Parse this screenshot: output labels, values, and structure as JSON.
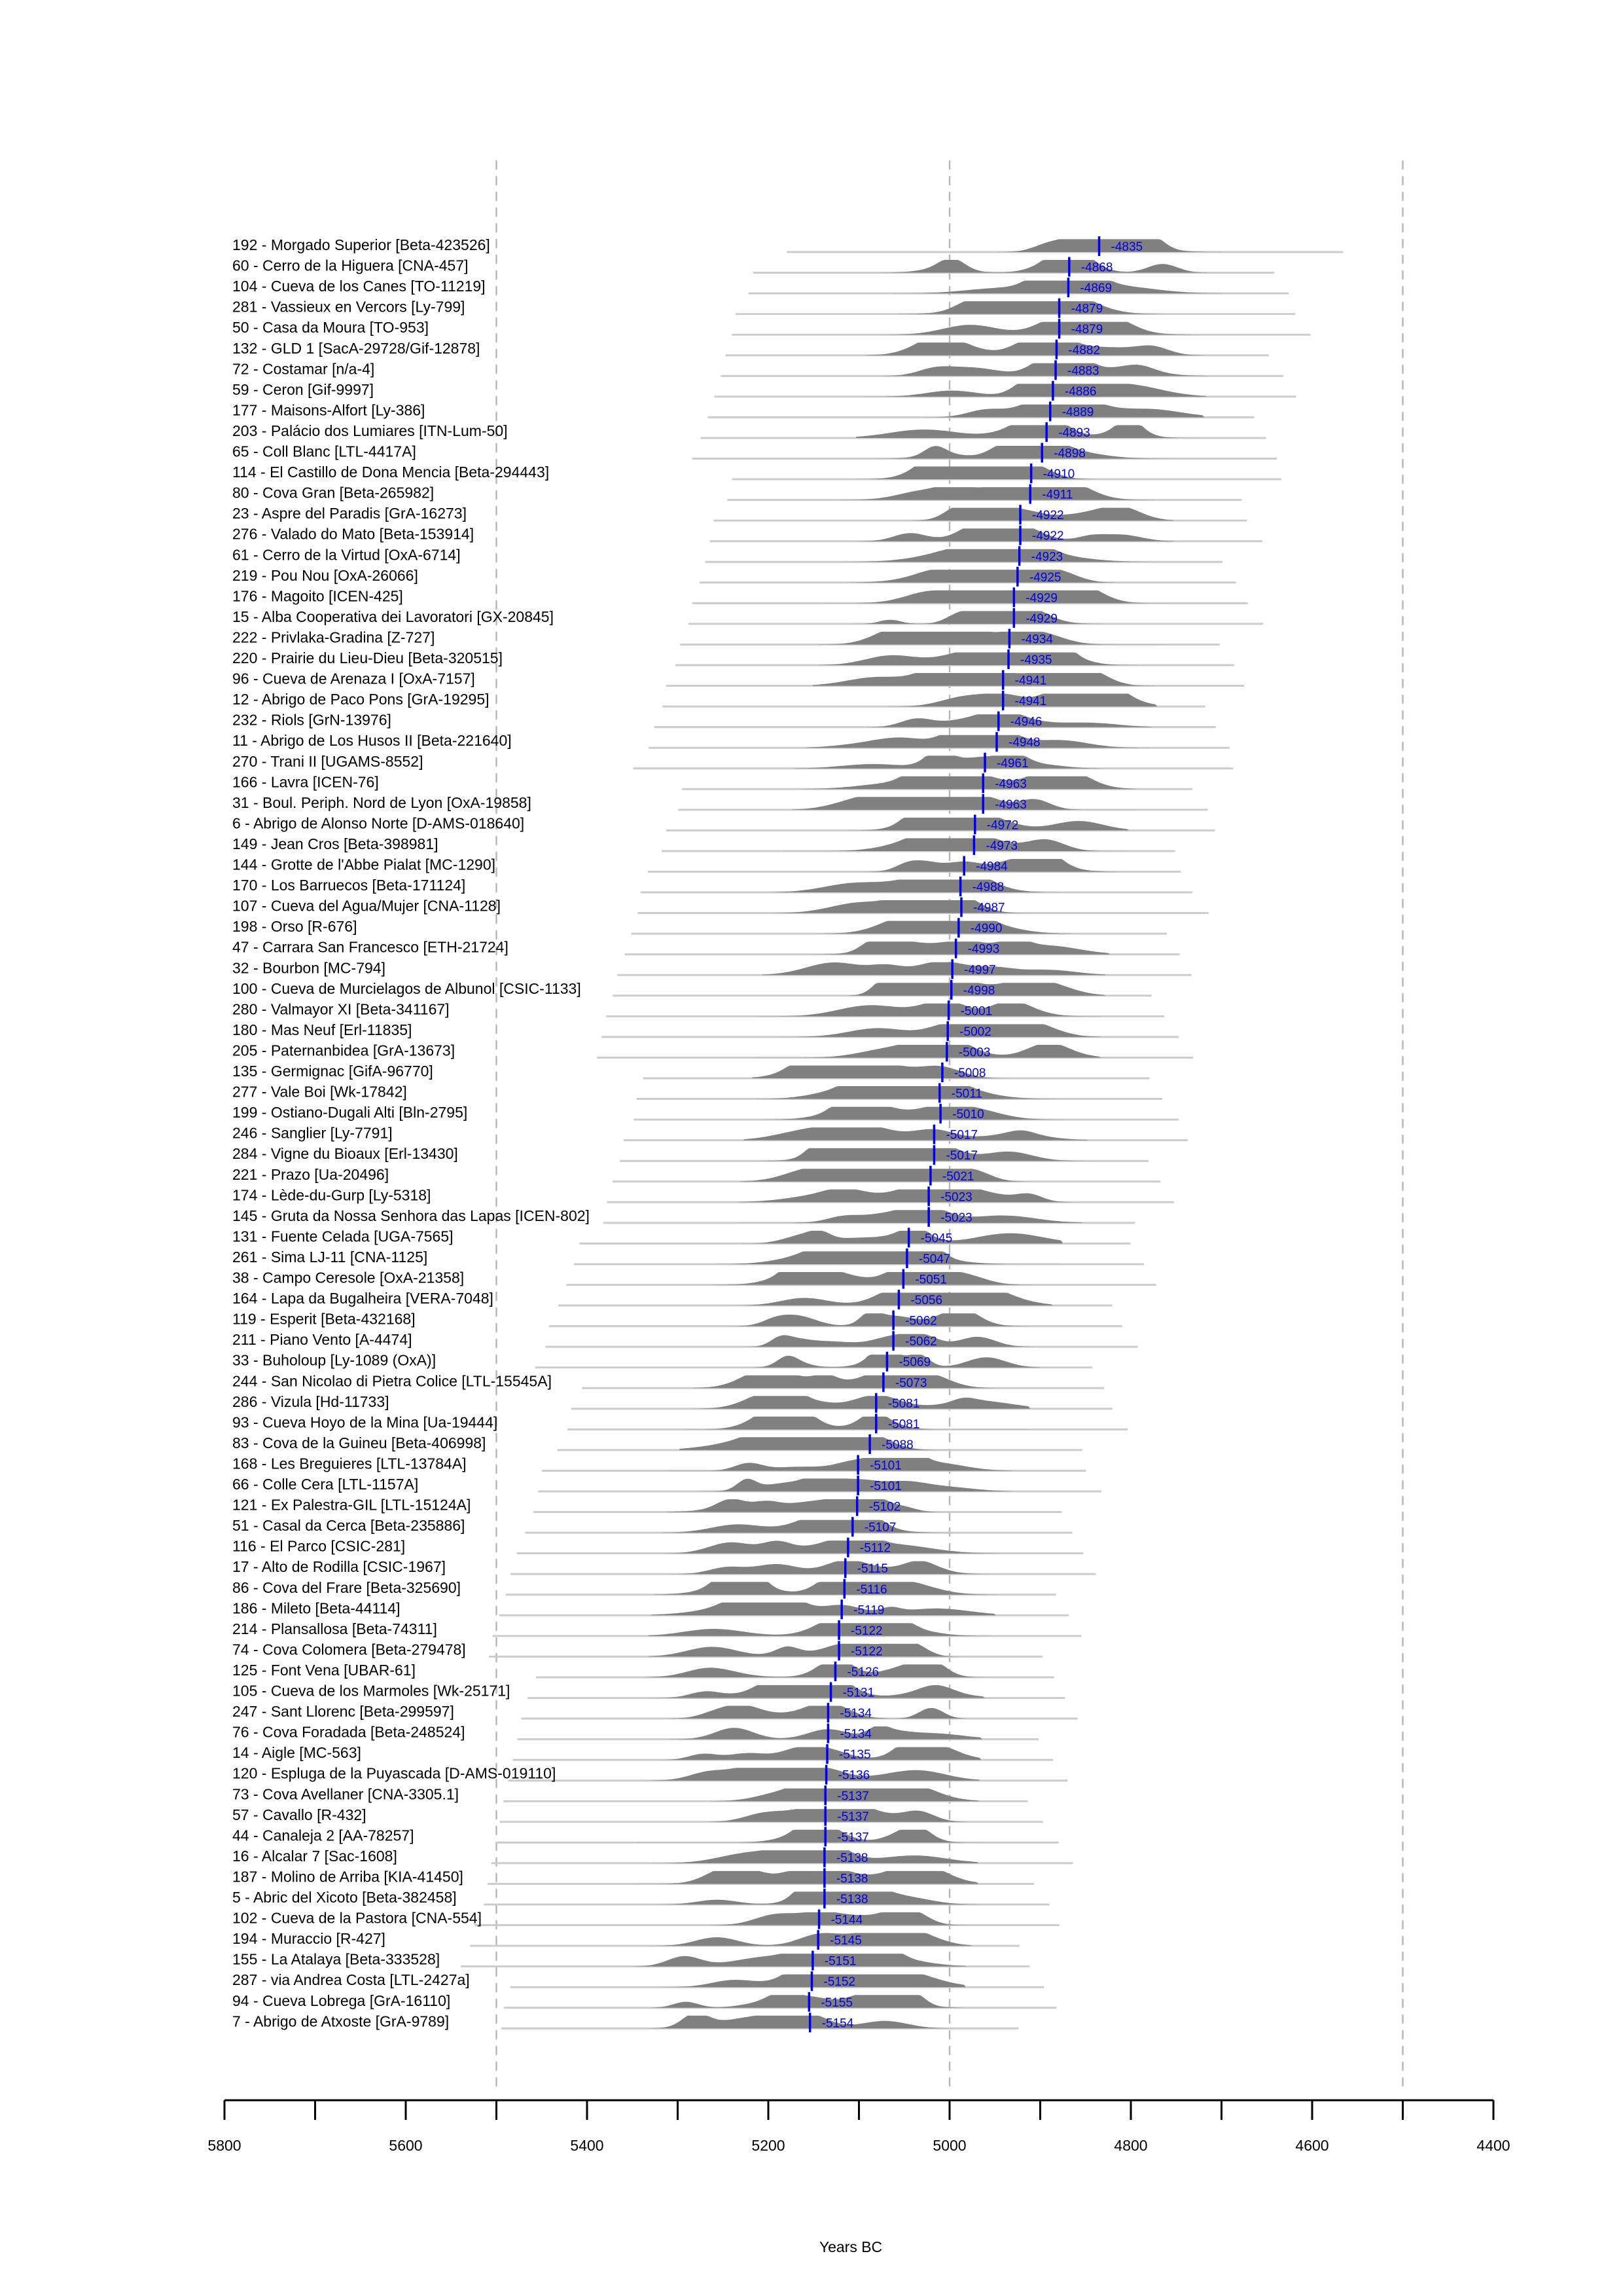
{
  "chart_data": {
    "type": "density-ridge",
    "xlabel": "Years BC",
    "xlim": [
      5800,
      4400
    ],
    "ticks_labeled": [
      5800,
      5600,
      5400,
      5200,
      5000,
      4800,
      4600,
      4400
    ],
    "ticks_minor": [
      5700,
      5500,
      5300,
      5100,
      4900,
      4700,
      4500
    ],
    "reference_lines": [
      5500,
      5000,
      4500
    ],
    "colors": {
      "density": "#808080",
      "range": "#cccccc",
      "median": "#0000ee"
    },
    "rows": [
      {
        "label": "192 - Morgado Superior [Beta-423526]",
        "median": -4835
      },
      {
        "label": "60 - Cerro de la Higuera [CNA-457]",
        "median": -4868
      },
      {
        "label": "104 - Cueva de los Canes [TO-11219]",
        "median": -4869
      },
      {
        "label": "281 - Vassieux en Vercors [Ly-799]",
        "median": -4879
      },
      {
        "label": "50 - Casa da Moura [TO-953]",
        "median": -4879
      },
      {
        "label": "132 - GLD 1 [SacA-29728/Gif-12878]",
        "median": -4882
      },
      {
        "label": "72 - Costamar [n/a-4]",
        "median": -4883
      },
      {
        "label": "59 - Ceron [Gif-9997]",
        "median": -4886
      },
      {
        "label": "177 - Maisons-Alfort [Ly-386]",
        "median": -4889
      },
      {
        "label": "203 - Palácio dos Lumiares [ITN-Lum-50]",
        "median": -4893
      },
      {
        "label": "65 - Coll Blanc [LTL-4417A]",
        "median": -4898
      },
      {
        "label": "114 - El Castillo de Dona Mencia [Beta-294443]",
        "median": -4910
      },
      {
        "label": "80 - Cova Gran [Beta-265982]",
        "median": -4911
      },
      {
        "label": "23 - Aspre del Paradis [GrA-16273]",
        "median": -4922
      },
      {
        "label": "276 - Valado do Mato [Beta-153914]",
        "median": -4922
      },
      {
        "label": "61 - Cerro de la Virtud [OxA-6714]",
        "median": -4923
      },
      {
        "label": "219 - Pou Nou [OxA-26066]",
        "median": -4925
      },
      {
        "label": "176 - Magoito [ICEN-425]",
        "median": -4929
      },
      {
        "label": "15 - Alba Cooperativa dei Lavoratori [GX-20845]",
        "median": -4929
      },
      {
        "label": "222 - Privlaka-Gradina [Z-727]",
        "median": -4934
      },
      {
        "label": "220 - Prairie du Lieu-Dieu [Beta-320515]",
        "median": -4935
      },
      {
        "label": "96 - Cueva de Arenaza I [OxA-7157]",
        "median": -4941
      },
      {
        "label": "12 - Abrigo de Paco Pons [GrA-19295]",
        "median": -4941
      },
      {
        "label": "232 - Riols [GrN-13976]",
        "median": -4946
      },
      {
        "label": "11 - Abrigo de Los Husos II [Beta-221640]",
        "median": -4948
      },
      {
        "label": "270 - Trani II [UGAMS-8552]",
        "median": -4961
      },
      {
        "label": "166 - Lavra [ICEN-76]",
        "median": -4963
      },
      {
        "label": "31 - Boul. Periph. Nord de Lyon [OxA-19858]",
        "median": -4963
      },
      {
        "label": "6 - Abrigo de Alonso Norte [D-AMS-018640]",
        "median": -4972
      },
      {
        "label": "149 - Jean Cros [Beta-398981]",
        "median": -4973
      },
      {
        "label": "144 - Grotte de l'Abbe Pialat [MC-1290]",
        "median": -4984
      },
      {
        "label": "170 - Los Barruecos [Beta-171124]",
        "median": -4988
      },
      {
        "label": "107 - Cueva del Agua/Mujer [CNA-1128]",
        "median": -4987
      },
      {
        "label": "198 - Orso [R-676]",
        "median": -4990
      },
      {
        "label": "47 - Carrara San Francesco [ETH-21724]",
        "median": -4993
      },
      {
        "label": "32 - Bourbon [MC-794]",
        "median": -4997
      },
      {
        "label": "100 - Cueva de Murcielagos de Albunol [CSIC-1133]",
        "median": -4998
      },
      {
        "label": "280 - Valmayor XI [Beta-341167]",
        "median": -5001
      },
      {
        "label": "180 - Mas Neuf [Erl-11835]",
        "median": -5002
      },
      {
        "label": "205 - Paternanbidea [GrA-13673]",
        "median": -5003
      },
      {
        "label": "135 - Germignac [GifA-96770]",
        "median": -5008
      },
      {
        "label": "277 - Vale Boi [Wk-17842]",
        "median": -5011
      },
      {
        "label": "199 - Ostiano-Dugali Alti [Bln-2795]",
        "median": -5010
      },
      {
        "label": "246 - Sanglier [Ly-7791]",
        "median": -5017
      },
      {
        "label": "284 - Vigne du Bioaux [Erl-13430]",
        "median": -5017
      },
      {
        "label": "221 - Prazo [Ua-20496]",
        "median": -5021
      },
      {
        "label": "174 - Lède-du-Gurp [Ly-5318]",
        "median": -5023
      },
      {
        "label": "145 - Gruta da Nossa Senhora das Lapas [ICEN-802]",
        "median": -5023
      },
      {
        "label": "131 - Fuente Celada [UGA-7565]",
        "median": -5045
      },
      {
        "label": "261 - Sima LJ-11 [CNA-1125]",
        "median": -5047
      },
      {
        "label": "38 - Campo Ceresole [OxA-21358]",
        "median": -5051
      },
      {
        "label": "164 - Lapa da Bugalheira [VERA-7048]",
        "median": -5056
      },
      {
        "label": "119 - Esperit [Beta-432168]",
        "median": -5062
      },
      {
        "label": "211 - Piano Vento [A-4474]",
        "median": -5062
      },
      {
        "label": "33 - Buholoup [Ly-1089 (OxA)]",
        "median": -5069
      },
      {
        "label": "244 - San Nicolao di Pietra Colice [LTL-15545A]",
        "median": -5073
      },
      {
        "label": "286 - Vizula [Hd-11733]",
        "median": -5081
      },
      {
        "label": "93 - Cueva Hoyo de la Mina [Ua-19444]",
        "median": -5081
      },
      {
        "label": "83 - Cova de la Guineu [Beta-406998]",
        "median": -5088
      },
      {
        "label": "168 - Les Breguieres [LTL-13784A]",
        "median": -5101
      },
      {
        "label": "66 - Colle Cera [LTL-1157A]",
        "median": -5101
      },
      {
        "label": "121 - Ex Palestra-GIL [LTL-15124A]",
        "median": -5102
      },
      {
        "label": "51 - Casal da Cerca [Beta-235886]",
        "median": -5107
      },
      {
        "label": "116 - El Parco [CSIC-281]",
        "median": -5112
      },
      {
        "label": "17 - Alto de Rodilla [CSIC-1967]",
        "median": -5115
      },
      {
        "label": "86 - Cova del Frare [Beta-325690]",
        "median": -5116
      },
      {
        "label": "186 - Mileto [Beta-44114]",
        "median": -5119
      },
      {
        "label": "214 - Plansallosa [Beta-74311]",
        "median": -5122
      },
      {
        "label": "74 - Cova Colomera [Beta-279478]",
        "median": -5122
      },
      {
        "label": "125 - Font Vena [UBAR-61]",
        "median": -5126
      },
      {
        "label": "105 - Cueva de los Marmoles [Wk-25171]",
        "median": -5131
      },
      {
        "label": "247 - Sant Llorenc [Beta-299597]",
        "median": -5134
      },
      {
        "label": "76 - Cova Foradada [Beta-248524]",
        "median": -5134
      },
      {
        "label": "14 - Aigle [MC-563]",
        "median": -5135
      },
      {
        "label": "120 - Espluga de la Puyascada [D-AMS-019110]",
        "median": -5136
      },
      {
        "label": "73 - Cova Avellaner [CNA-3305.1]",
        "median": -5137
      },
      {
        "label": "57 - Cavallo [R-432]",
        "median": -5137
      },
      {
        "label": "44 - Canaleja 2 [AA-78257]",
        "median": -5137
      },
      {
        "label": "16 - Alcalar 7 [Sac-1608]",
        "median": -5138
      },
      {
        "label": "187 - Molino de Arriba [KIA-41450]",
        "median": -5138
      },
      {
        "label": "5 - Abric del Xicoto [Beta-382458]",
        "median": -5138
      },
      {
        "label": "102 - Cueva de la Pastora [CNA-554]",
        "median": -5144
      },
      {
        "label": "194 - Muraccio [R-427]",
        "median": -5145
      },
      {
        "label": "155 - La Atalaya [Beta-333528]",
        "median": -5151
      },
      {
        "label": "287 - via Andrea Costa [LTL-2427a]",
        "median": -5152
      },
      {
        "label": "94 - Cueva Lobrega [GrA-16110]",
        "median": -5155
      },
      {
        "label": "7 - Abrigo de Atxoste [GrA-9789]",
        "median": -5154
      }
    ]
  }
}
